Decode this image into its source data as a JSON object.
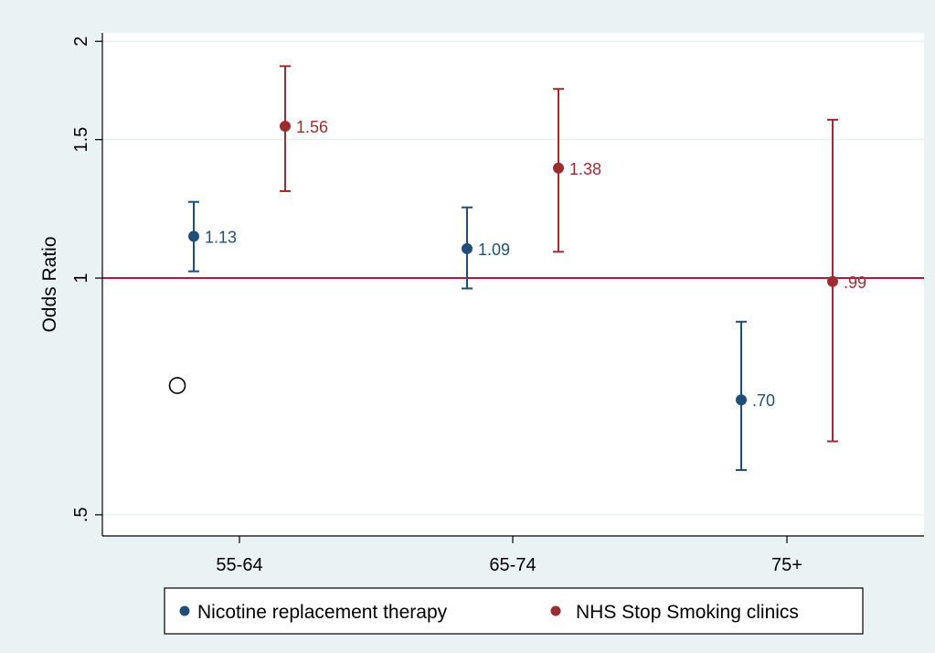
{
  "chart_data": {
    "type": "scatter",
    "subtype": "point-estimate-with-confidence-intervals",
    "ylabel": "Odds Ratio",
    "xlabel": "",
    "y_scale": "log",
    "ylim": [
      0.47,
      2.05
    ],
    "y_ticks": [
      {
        "value": 0.5,
        "label": ".5"
      },
      {
        "value": 1,
        "label": "1"
      },
      {
        "value": 1.5,
        "label": "1.5"
      },
      {
        "value": 2,
        "label": "2"
      }
    ],
    "categories": [
      "55-64",
      "65-74",
      "75+"
    ],
    "reference_line": {
      "y": 1,
      "color": "#b5173d"
    },
    "grid": true,
    "legend_position": "bottom",
    "series": [
      {
        "name": "Nicotine replacement therapy",
        "color": "#1f4e79",
        "points": [
          {
            "category": "55-64",
            "estimate": 1.13,
            "lower": 1.02,
            "upper": 1.25,
            "label": "1.13"
          },
          {
            "category": "65-74",
            "estimate": 1.09,
            "lower": 0.97,
            "upper": 1.23,
            "label": "1.09"
          },
          {
            "category": "75+",
            "estimate": 0.7,
            "lower": 0.57,
            "upper": 0.88,
            "label": ".70"
          }
        ]
      },
      {
        "name": "NHS Stop Smoking clinics",
        "color": "#9b2d30",
        "points": [
          {
            "category": "55-64",
            "estimate": 1.56,
            "lower": 1.29,
            "upper": 1.86,
            "label": "1.56"
          },
          {
            "category": "65-74",
            "estimate": 1.38,
            "lower": 1.08,
            "upper": 1.74,
            "label": "1.38"
          },
          {
            "category": "75+",
            "estimate": 0.99,
            "lower": 0.62,
            "upper": 1.59,
            "label": ".99"
          }
        ]
      }
    ],
    "annotations": [
      {
        "type": "hollow-circle",
        "category": "55-64",
        "y": 0.73
      }
    ]
  },
  "legend": {
    "items": [
      {
        "label": "Nicotine replacement therapy",
        "color": "#1f4e79"
      },
      {
        "label": "NHS Stop Smoking clinics",
        "color": "#9b2d30"
      }
    ]
  },
  "colors": {
    "background": "#eaf2f3",
    "plot_background": "#ffffff"
  }
}
